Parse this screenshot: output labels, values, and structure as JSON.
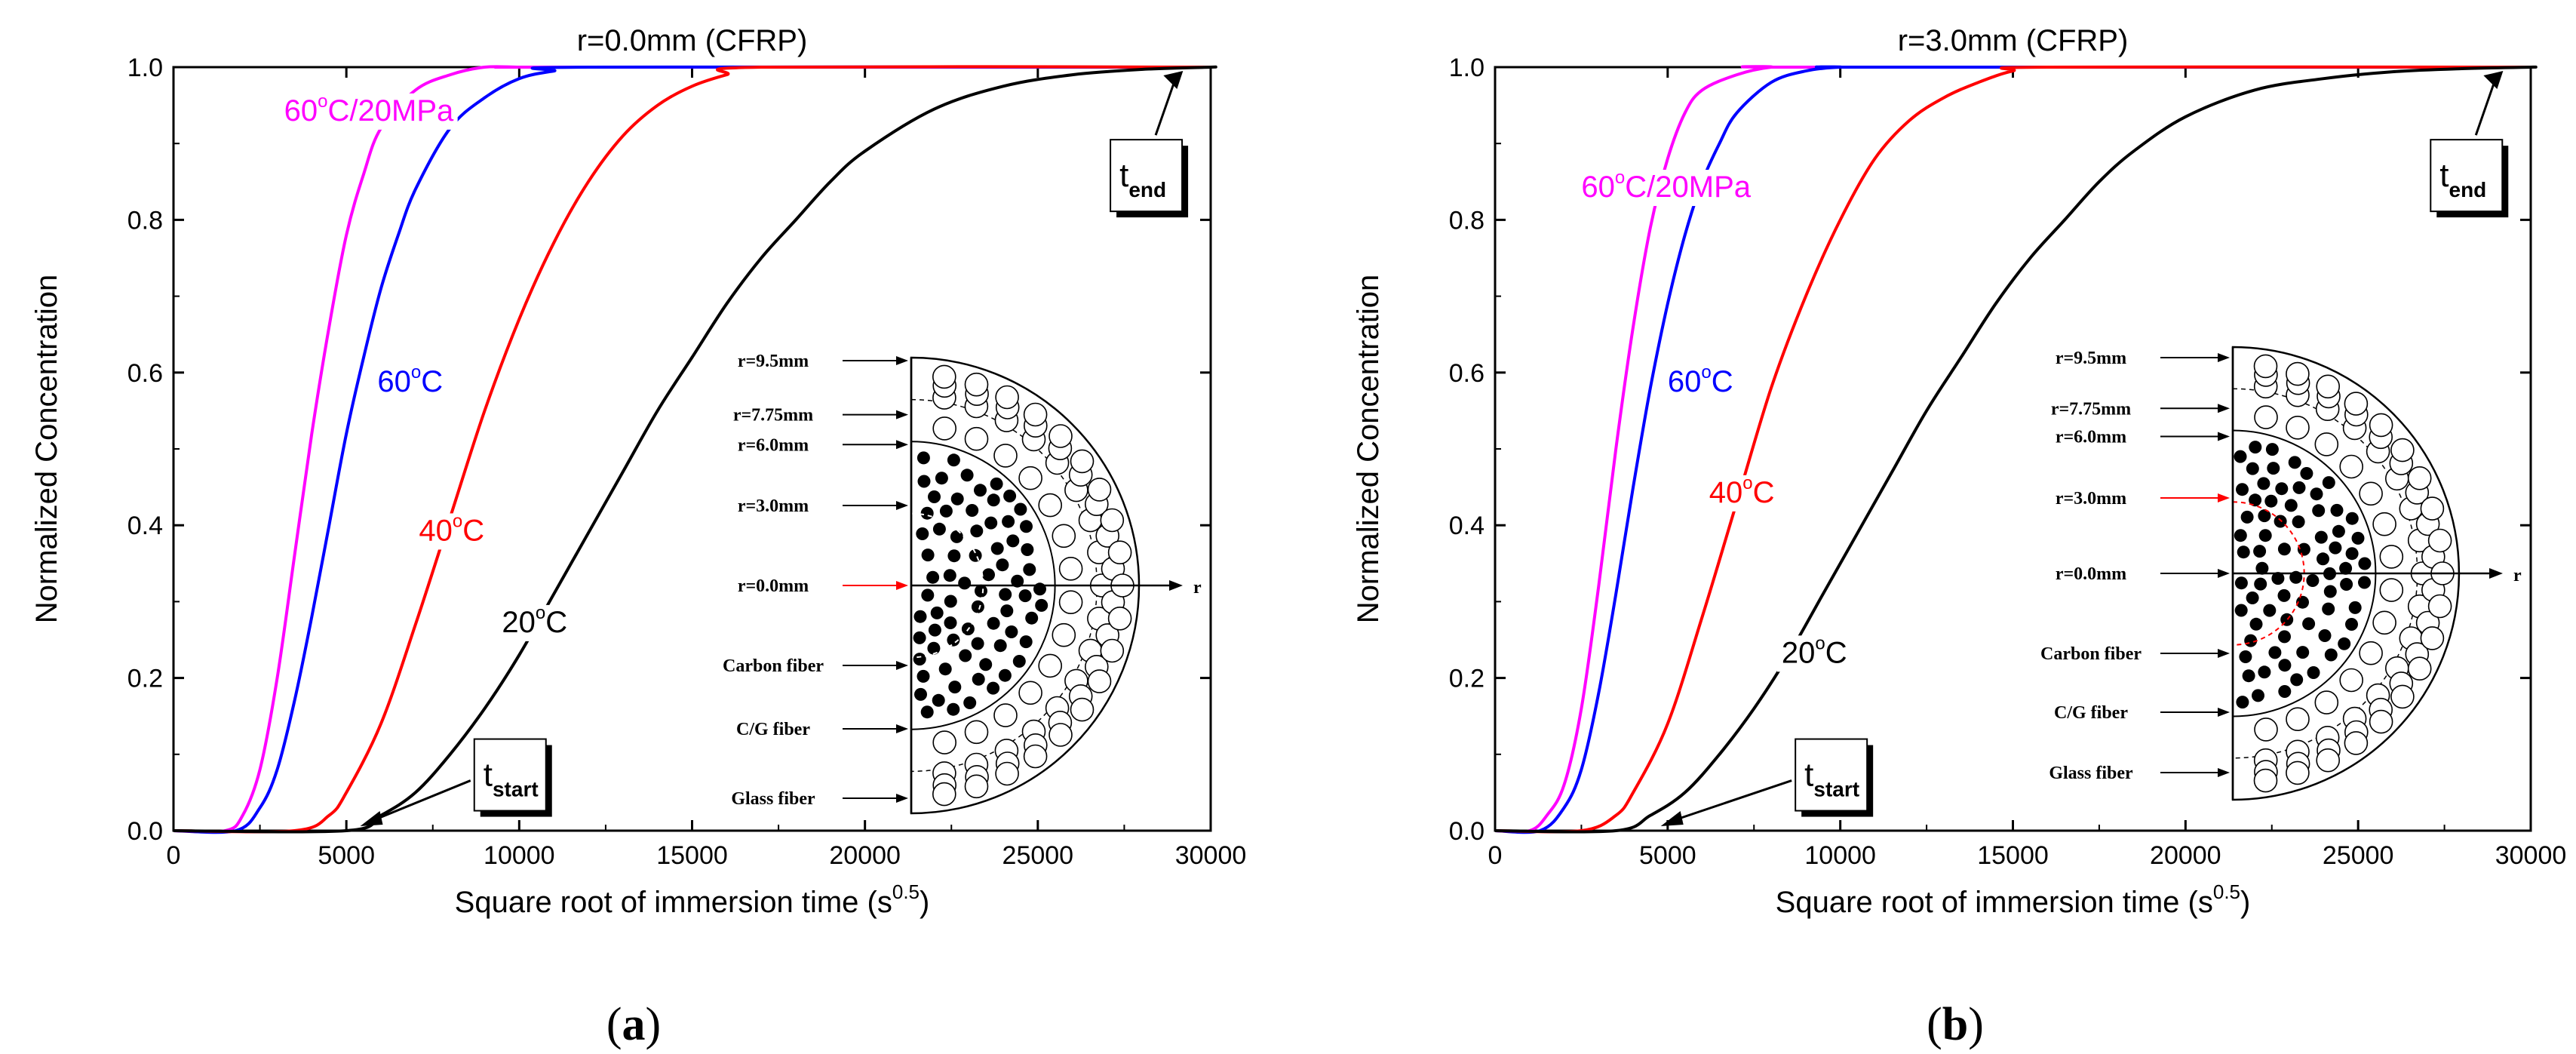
{
  "chart_data": [
    {
      "type": "line",
      "panel_label": "a",
      "title": "r=0.0mm (CFRP)",
      "xlabel": "Square root of immersion time (s",
      "xlabel_sup": "0.5",
      "xlabel_end": ")",
      "ylabel": "Normalized Concentration",
      "xlim": [
        0,
        30000
      ],
      "ylim": [
        0.0,
        1.0
      ],
      "xticks": [
        "0",
        "5000",
        "10000",
        "15000",
        "20000",
        "25000",
        "30000"
      ],
      "yticks": [
        "0.0",
        "0.2",
        "0.4",
        "0.6",
        "0.8",
        "1.0"
      ],
      "series": [
        {
          "name": "60°C/20MPa",
          "color": "#ff00ff",
          "x": [
            1500,
            2000,
            2500,
            3000,
            3500,
            4000,
            4500,
            5000,
            5500,
            6000,
            7000,
            8000,
            9000,
            10000,
            11000
          ],
          "values": [
            0.0,
            0.02,
            0.08,
            0.2,
            0.36,
            0.52,
            0.66,
            0.78,
            0.86,
            0.92,
            0.97,
            0.99,
            1.0,
            1.0,
            1.0
          ]
        },
        {
          "name": "60°C",
          "color": "#0000ff",
          "x": [
            1800,
            2500,
            3000,
            3500,
            4000,
            4500,
            5000,
            5500,
            6000,
            6500,
            7000,
            8000,
            9000,
            10000,
            11000,
            12000
          ],
          "values": [
            0.0,
            0.03,
            0.08,
            0.17,
            0.28,
            0.4,
            0.52,
            0.62,
            0.71,
            0.78,
            0.84,
            0.92,
            0.96,
            0.985,
            0.995,
            1.0
          ]
        },
        {
          "name": "40°C",
          "color": "#ff0000",
          "x": [
            3500,
            4500,
            5000,
            6000,
            7000,
            8000,
            9000,
            10000,
            11000,
            12000,
            13000,
            14000,
            15000,
            16000,
            17000
          ],
          "values": [
            0.0,
            0.02,
            0.05,
            0.14,
            0.27,
            0.41,
            0.55,
            0.67,
            0.77,
            0.85,
            0.91,
            0.95,
            0.975,
            0.99,
            1.0
          ]
        },
        {
          "name": "20°C",
          "color": "#000000",
          "x": [
            5000,
            6000,
            7000,
            8000,
            9000,
            10000,
            11000,
            12000,
            13000,
            14000,
            15000,
            16000,
            17000,
            18000,
            19000,
            20000,
            22000,
            24000,
            26000,
            28000,
            30000
          ],
          "values": [
            0.0,
            0.02,
            0.05,
            0.1,
            0.16,
            0.23,
            0.31,
            0.39,
            0.47,
            0.55,
            0.62,
            0.69,
            0.75,
            0.8,
            0.85,
            0.89,
            0.945,
            0.975,
            0.99,
            0.997,
            1.0
          ]
        }
      ],
      "curve_labels": [
        {
          "text": "60",
          "deg": "o",
          "unit": "C/20MPa",
          "color": "#ff00ff",
          "x": 3200,
          "y": 0.93
        },
        {
          "text": "60",
          "deg": "o",
          "unit": "C",
          "color": "#0000ff",
          "x": 5900,
          "y": 0.575
        },
        {
          "text": "40",
          "deg": "o",
          "unit": "C",
          "color": "#ff0000",
          "x": 7100,
          "y": 0.38
        },
        {
          "text": "20",
          "deg": "o",
          "unit": "C",
          "color": "#000000",
          "x": 9500,
          "y": 0.26
        }
      ],
      "annotations": {
        "t_start": {
          "main": "t",
          "sub": "start"
        },
        "t_end": {
          "main": "t",
          "sub": "end"
        }
      },
      "inset": {
        "labels": [
          "r=9.5mm",
          "r=7.75mm",
          "r=6.0mm",
          "r=3.0mm",
          "r=0.0mm",
          "Carbon fiber",
          "C/G fiber",
          "Glass fiber"
        ],
        "highlight": "r=0.0mm",
        "highlight_color": "#ff0000",
        "axis_label": "r"
      }
    },
    {
      "type": "line",
      "panel_label": "b",
      "title": "r=3.0mm (CFRP)",
      "xlabel": "Square root of immersion time (s",
      "xlabel_sup": "0.5",
      "xlabel_end": ")",
      "ylabel": "Normalized Concentration",
      "xlim": [
        0,
        30000
      ],
      "ylim": [
        0.0,
        1.0
      ],
      "xticks": [
        "0",
        "5000",
        "10000",
        "15000",
        "20000",
        "25000",
        "30000"
      ],
      "yticks": [
        "0.0",
        "0.2",
        "0.4",
        "0.6",
        "0.8",
        "1.0"
      ],
      "series": [
        {
          "name": "60°C/20MPa",
          "color": "#ff00ff",
          "x": [
            1000,
            1500,
            2000,
            2500,
            3000,
            3500,
            4000,
            4500,
            5000,
            5500,
            6000,
            7000,
            8000,
            9000
          ],
          "values": [
            0.0,
            0.02,
            0.06,
            0.16,
            0.32,
            0.5,
            0.66,
            0.79,
            0.88,
            0.94,
            0.97,
            0.99,
            1.0,
            1.0
          ]
        },
        {
          "name": "60°C",
          "color": "#0000ff",
          "x": [
            1300,
            2000,
            2500,
            3000,
            3500,
            4000,
            4500,
            5000,
            5500,
            6000,
            6500,
            7000,
            8000,
            9000,
            10000,
            11000
          ],
          "values": [
            0.0,
            0.03,
            0.08,
            0.18,
            0.31,
            0.45,
            0.58,
            0.69,
            0.78,
            0.85,
            0.9,
            0.94,
            0.98,
            0.995,
            1.0,
            1.0
          ]
        },
        {
          "name": "40°C",
          "color": "#ff0000",
          "x": [
            2500,
            3500,
            4000,
            5000,
            6000,
            7000,
            8000,
            9000,
            10000,
            11000,
            12000,
            13000,
            14000,
            15000,
            16000
          ],
          "values": [
            0.0,
            0.02,
            0.05,
            0.14,
            0.28,
            0.43,
            0.58,
            0.7,
            0.8,
            0.88,
            0.93,
            0.96,
            0.98,
            0.995,
            1.0
          ]
        },
        {
          "name": "20°C",
          "color": "#000000",
          "x": [
            3500,
            4500,
            5500,
            6500,
            7500,
            8500,
            9500,
            10500,
            11500,
            12500,
            13500,
            14500,
            15500,
            16500,
            17500,
            18500,
            20000,
            22000,
            24000,
            26000,
            28000,
            30000
          ],
          "values": [
            0.0,
            0.02,
            0.05,
            0.1,
            0.16,
            0.23,
            0.31,
            0.39,
            0.47,
            0.55,
            0.62,
            0.69,
            0.75,
            0.8,
            0.85,
            0.89,
            0.935,
            0.97,
            0.985,
            0.994,
            0.998,
            1.0
          ]
        }
      ],
      "curve_labels": [
        {
          "text": "60",
          "deg": "o",
          "unit": "C/20MPa",
          "color": "#ff00ff",
          "x": 2500,
          "y": 0.83
        },
        {
          "text": "60",
          "deg": "o",
          "unit": "C",
          "color": "#0000ff",
          "x": 5000,
          "y": 0.575
        },
        {
          "text": "40",
          "deg": "o",
          "unit": "C",
          "color": "#ff0000",
          "x": 6200,
          "y": 0.43
        },
        {
          "text": "20",
          "deg": "o",
          "unit": "C",
          "color": "#000000",
          "x": 8300,
          "y": 0.22
        }
      ],
      "annotations": {
        "t_start": {
          "main": "t",
          "sub": "start"
        },
        "t_end": {
          "main": "t",
          "sub": "end"
        }
      },
      "inset": {
        "labels": [
          "r=9.5mm",
          "r=7.75mm",
          "r=6.0mm",
          "r=3.0mm",
          "r=0.0mm",
          "Carbon fiber",
          "C/G fiber",
          "Glass fiber"
        ],
        "highlight": "r=3.0mm",
        "highlight_color": "#ff0000",
        "axis_label": "r"
      }
    }
  ]
}
